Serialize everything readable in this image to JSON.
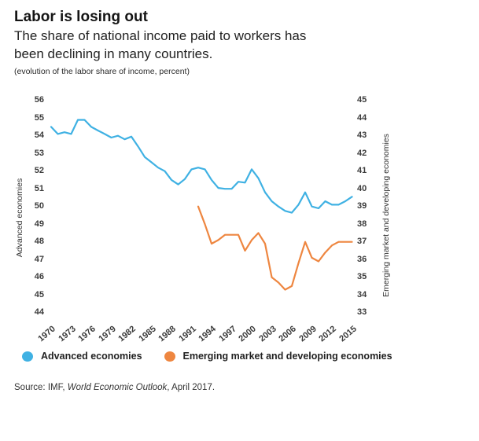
{
  "header": {
    "title": "Labor is losing out",
    "subtitle_line1": "The share of national income paid to workers has",
    "subtitle_line2": "been declining in many countries.",
    "note": "(evolution of the labor share of income, percent)"
  },
  "chart_data": {
    "type": "line",
    "title": "Labor is losing out",
    "subtitle": "The share of national income paid to workers has been declining in many countries.",
    "units_note": "(evolution of the labor share of income, percent)",
    "grid": false,
    "left_axis": {
      "label": "Advanced economies",
      "ticks": [
        56,
        55,
        54,
        53,
        52,
        51,
        50,
        49,
        48,
        47,
        46,
        45,
        44
      ],
      "range": [
        44,
        56
      ]
    },
    "right_axis": {
      "label": "Emerging market and developing economies",
      "ticks": [
        45,
        44,
        43,
        42,
        41,
        40,
        39,
        38,
        37,
        36,
        35,
        34,
        33
      ],
      "range": [
        33,
        45
      ]
    },
    "x_axis": {
      "ticks": [
        1970,
        1973,
        1976,
        1979,
        1982,
        1985,
        1988,
        1991,
        1994,
        1997,
        2000,
        2003,
        2006,
        2009,
        2012,
        2015
      ],
      "range": [
        1970,
        2015
      ]
    },
    "series": [
      {
        "name": "Advanced economies",
        "axis": "left",
        "color": "#3fb1e3",
        "start_year": 1970,
        "values": [
          54.5,
          54.1,
          54.2,
          54.1,
          54.9,
          54.9,
          54.5,
          54.3,
          54.1,
          53.9,
          54.0,
          53.8,
          53.95,
          53.4,
          52.8,
          52.5,
          52.2,
          52.0,
          51.5,
          51.25,
          51.55,
          52.1,
          52.2,
          52.1,
          51.5,
          51.05,
          51.0,
          51.0,
          51.4,
          51.35,
          52.1,
          51.6,
          50.8,
          50.3,
          50.0,
          49.75,
          49.65,
          50.1,
          50.8,
          50.0,
          49.9,
          50.3,
          50.1,
          50.1,
          50.3,
          50.55
        ]
      },
      {
        "name": "Emerging market and developing economies",
        "axis": "right",
        "color": "#ee8640",
        "start_year": 1992,
        "values": [
          39.0,
          38.0,
          36.9,
          37.1,
          37.4,
          37.4,
          37.4,
          36.5,
          37.1,
          37.5,
          36.9,
          35.0,
          34.7,
          34.3,
          34.5,
          35.8,
          37.0,
          36.1,
          35.9,
          36.4,
          36.8,
          37.0,
          37.0,
          37.0
        ]
      }
    ],
    "legend_position": "bottom"
  },
  "legend": {
    "items": [
      {
        "label": "Advanced economies",
        "color": "#3fb1e3"
      },
      {
        "label": "Emerging market and developing economies",
        "color": "#ee8640"
      }
    ]
  },
  "footer": {
    "source_prefix": "Source: IMF, ",
    "source_italic": "World Economic Outlook",
    "source_suffix": ", April 2017."
  }
}
